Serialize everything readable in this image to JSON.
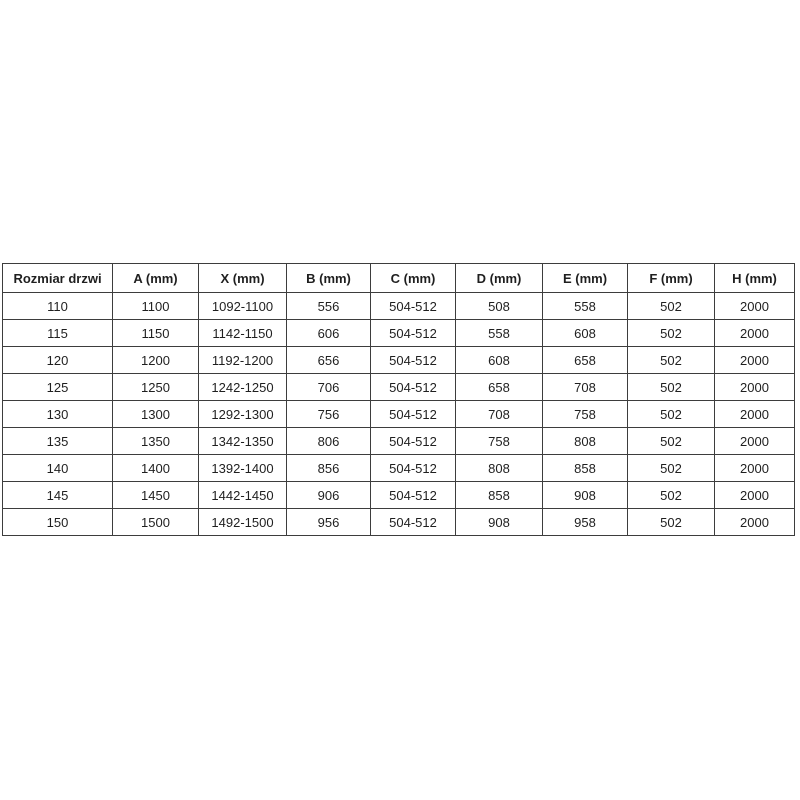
{
  "page": {
    "background_color": "#ffffff",
    "border_color": "#3d3d3d",
    "text_color": "#1f1f1f"
  },
  "table": {
    "columns": [
      "Rozmiar drzwi",
      "A (mm)",
      "X (mm)",
      "B (mm)",
      "C (mm)",
      "D (mm)",
      "E (mm)",
      "F (mm)",
      "H (mm)"
    ],
    "rows": [
      [
        "110",
        "1100",
        "1092-1100",
        "556",
        "504-512",
        "508",
        "558",
        "502",
        "2000"
      ],
      [
        "115",
        "1150",
        "1142-1150",
        "606",
        "504-512",
        "558",
        "608",
        "502",
        "2000"
      ],
      [
        "120",
        "1200",
        "1192-1200",
        "656",
        "504-512",
        "608",
        "658",
        "502",
        "2000"
      ],
      [
        "125",
        "1250",
        "1242-1250",
        "706",
        "504-512",
        "658",
        "708",
        "502",
        "2000"
      ],
      [
        "130",
        "1300",
        "1292-1300",
        "756",
        "504-512",
        "708",
        "758",
        "502",
        "2000"
      ],
      [
        "135",
        "1350",
        "1342-1350",
        "806",
        "504-512",
        "758",
        "808",
        "502",
        "2000"
      ],
      [
        "140",
        "1400",
        "1392-1400",
        "856",
        "504-512",
        "808",
        "858",
        "502",
        "2000"
      ],
      [
        "145",
        "1450",
        "1442-1450",
        "906",
        "504-512",
        "858",
        "908",
        "502",
        "2000"
      ],
      [
        "150",
        "1500",
        "1492-1500",
        "956",
        "504-512",
        "908",
        "958",
        "502",
        "2000"
      ]
    ]
  },
  "chart_data": {
    "type": "table",
    "title": "",
    "columns": [
      "Rozmiar drzwi",
      "A (mm)",
      "X (mm)",
      "B (mm)",
      "C (mm)",
      "D (mm)",
      "E (mm)",
      "F (mm)",
      "H (mm)"
    ],
    "rows": [
      [
        "110",
        "1100",
        "1092-1100",
        "556",
        "504-512",
        "508",
        "558",
        "502",
        "2000"
      ],
      [
        "115",
        "1150",
        "1142-1150",
        "606",
        "504-512",
        "558",
        "608",
        "502",
        "2000"
      ],
      [
        "120",
        "1200",
        "1192-1200",
        "656",
        "504-512",
        "608",
        "658",
        "502",
        "2000"
      ],
      [
        "125",
        "1250",
        "1242-1250",
        "706",
        "504-512",
        "658",
        "708",
        "502",
        "2000"
      ],
      [
        "130",
        "1300",
        "1292-1300",
        "756",
        "504-512",
        "708",
        "758",
        "502",
        "2000"
      ],
      [
        "135",
        "1350",
        "1342-1350",
        "806",
        "504-512",
        "758",
        "808",
        "502",
        "2000"
      ],
      [
        "140",
        "1400",
        "1392-1400",
        "856",
        "504-512",
        "808",
        "858",
        "502",
        "2000"
      ],
      [
        "145",
        "1450",
        "1442-1450",
        "906",
        "504-512",
        "858",
        "908",
        "502",
        "2000"
      ],
      [
        "150",
        "1500",
        "1492-1500",
        "956",
        "504-512",
        "908",
        "958",
        "502",
        "2000"
      ]
    ]
  }
}
